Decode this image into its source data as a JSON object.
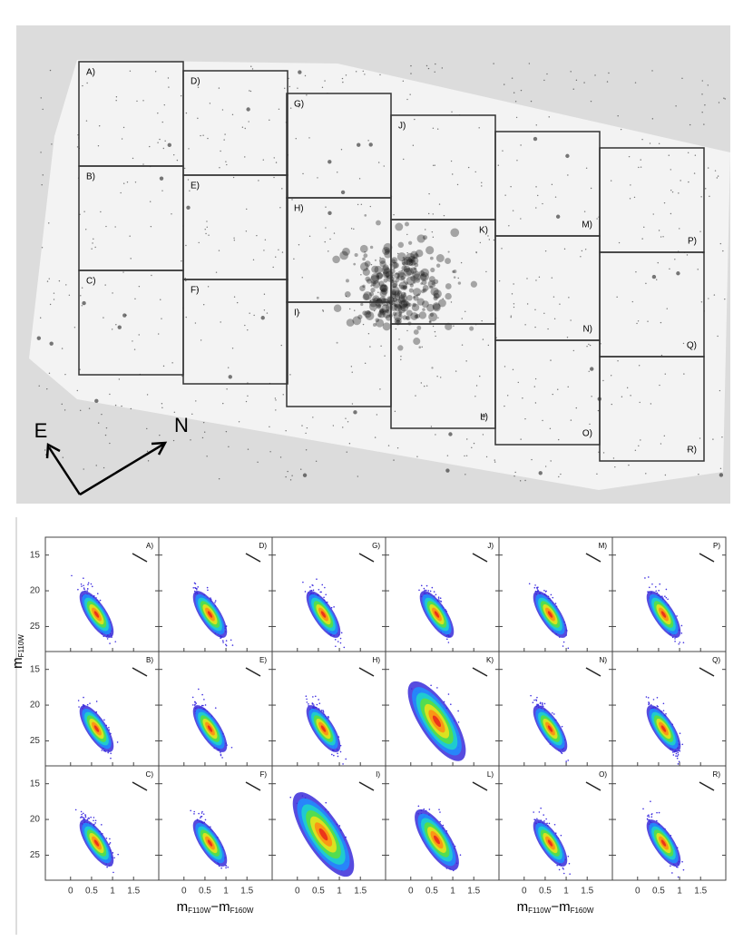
{
  "mosaic": {
    "panels": [
      "A)",
      "B)",
      "C)",
      "D)",
      "E)",
      "F)",
      "G)",
      "H)",
      "I)",
      "J)",
      "K)",
      "L)",
      "M)",
      "N)",
      "O)",
      "P)",
      "Q)",
      "R)"
    ],
    "compass": [
      "E",
      "N"
    ]
  },
  "cmd": {
    "panels": [
      "A)",
      "D)",
      "G)",
      "J)",
      "M)",
      "P)",
      "B)",
      "E)",
      "H)",
      "K)",
      "N)",
      "Q)",
      "C)",
      "F)",
      "I)",
      "L)",
      "O)",
      "R)"
    ],
    "ylabel": {
      "main": "m",
      "sub": "F110W"
    },
    "xlabel": {
      "main1": "m",
      "sub1": "F110W",
      "sep": "−",
      "main2": "m",
      "sub2": "F160W"
    },
    "xlim": [
      -0.6,
      2.1
    ],
    "ylim": [
      12.5,
      28.5
    ],
    "y_inverted": true,
    "xticks": [
      0,
      0.5,
      1,
      1.5
    ],
    "yticks": [
      15,
      20,
      25
    ]
  }
}
